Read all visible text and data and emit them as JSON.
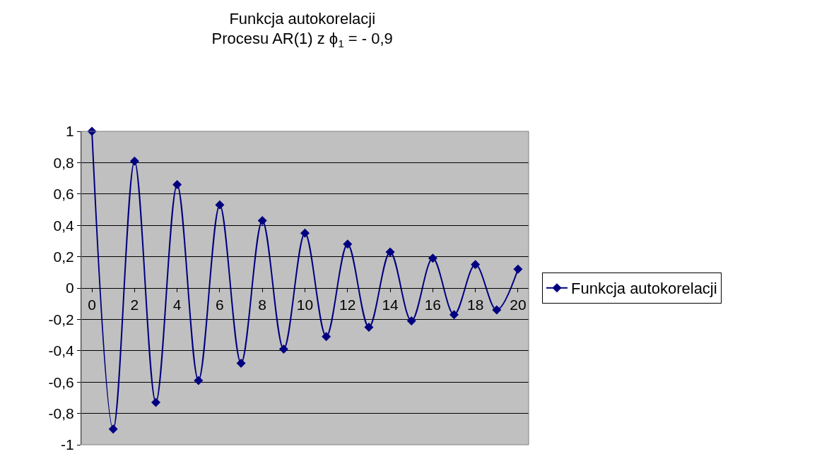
{
  "chart_data": {
    "type": "line",
    "title": "Funkcja autokorelacji",
    "subtitle": "Procesu AR(1) z ϕ$_{1}$ = - 0,9",
    "x": [
      0,
      1,
      2,
      3,
      4,
      5,
      6,
      7,
      8,
      9,
      10,
      11,
      12,
      13,
      14,
      15,
      16,
      17,
      18,
      19,
      20
    ],
    "series": [
      {
        "name": "Funkcja autokorelacji",
        "color": "#000080",
        "values": [
          1,
          -0.9,
          0.81,
          -0.73,
          0.66,
          -0.59,
          0.53,
          -0.48,
          0.43,
          -0.39,
          0.35,
          -0.31,
          0.28,
          -0.25,
          0.23,
          -0.21,
          0.19,
          -0.17,
          0.15,
          -0.14,
          0.12
        ]
      }
    ],
    "xlim": [
      -0.5,
      20.5
    ],
    "xticks": [
      0,
      2,
      4,
      6,
      8,
      10,
      12,
      14,
      16,
      18,
      20
    ],
    "ylim": [
      -1,
      1
    ],
    "yticks": [
      {
        "value": 1,
        "label": "1"
      },
      {
        "value": 0.8,
        "label": "0,8"
      },
      {
        "value": 0.6,
        "label": "0,6"
      },
      {
        "value": 0.4,
        "label": "0,4"
      },
      {
        "value": 0.2,
        "label": "0,2"
      },
      {
        "value": 0,
        "label": "0"
      },
      {
        "value": -0.2,
        "label": "-0,2"
      },
      {
        "value": -0.4,
        "label": "-0,4"
      },
      {
        "value": -0.6,
        "label": "-0,6"
      },
      {
        "value": -0.8,
        "label": "-0,8"
      },
      {
        "value": -1,
        "label": "-1"
      }
    ],
    "grid": "y",
    "legend": "right",
    "marker": "diamond",
    "line_style": "solid"
  }
}
